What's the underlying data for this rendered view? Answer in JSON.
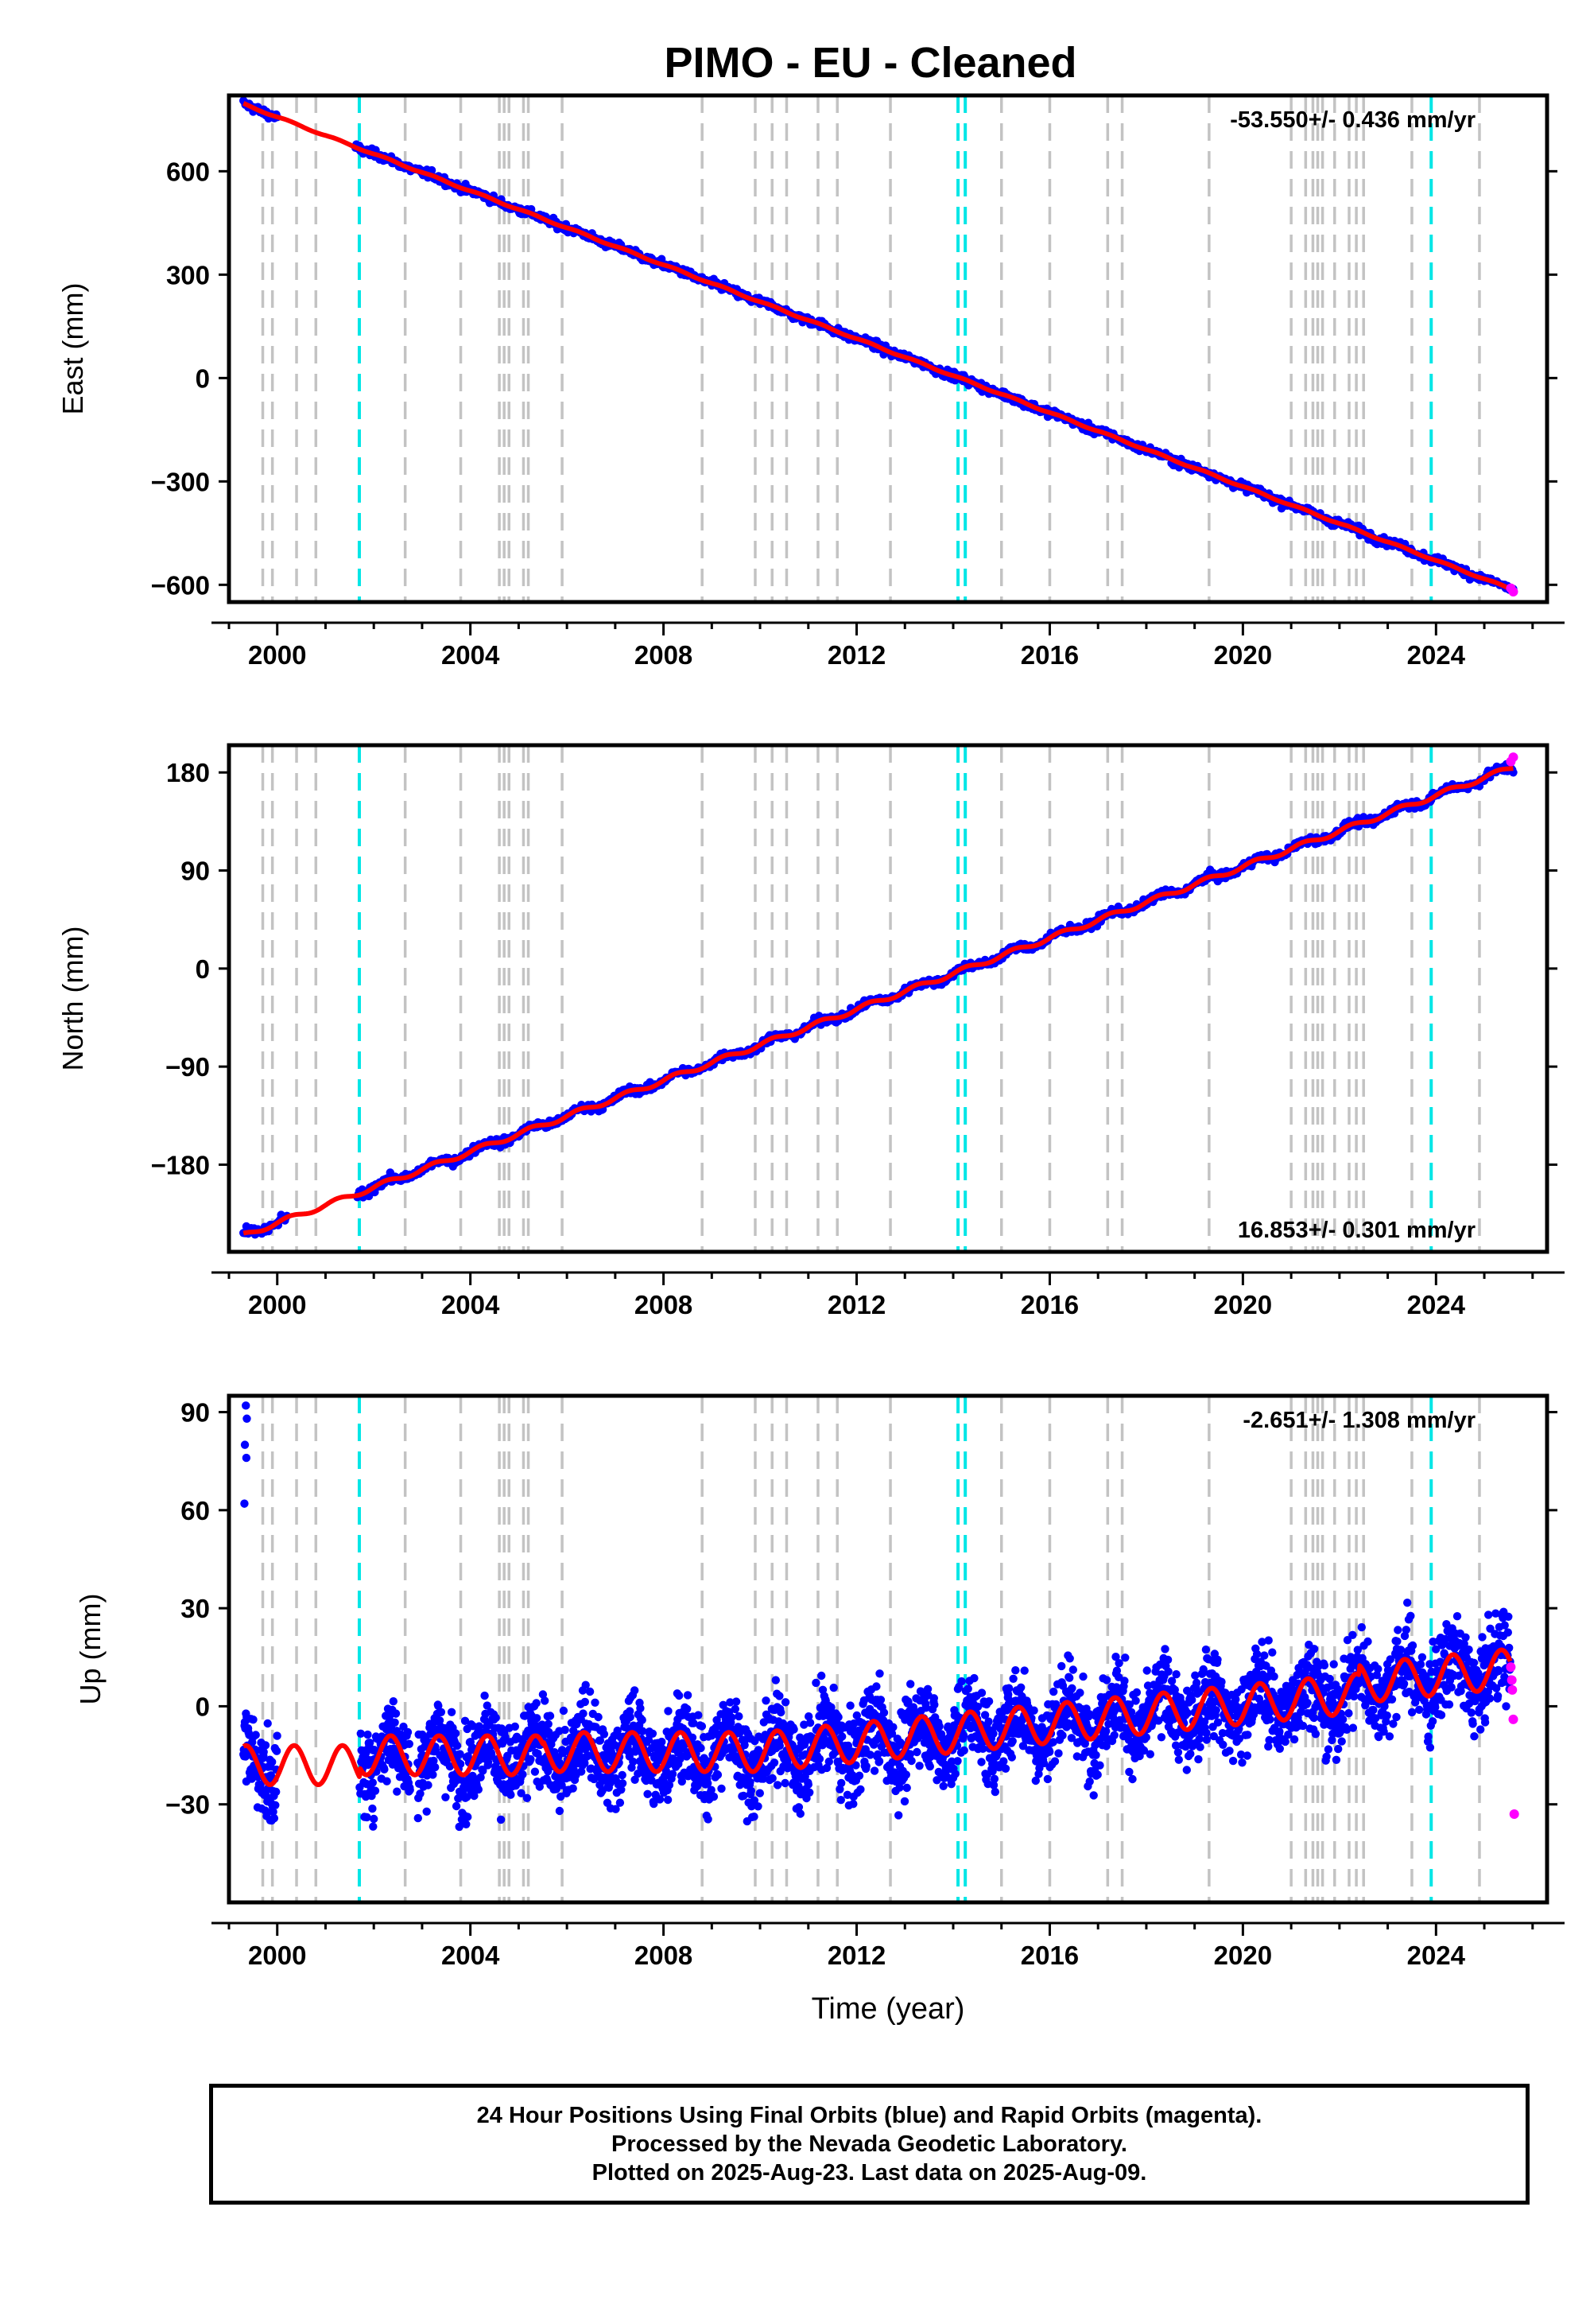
{
  "title": "PIMO  - EU - Cleaned",
  "chart_data": [
    {
      "type": "scatter",
      "ylabel": "East (mm)",
      "xlim": [
        1999.0,
        2026.3
      ],
      "ylim": [
        -650,
        820
      ],
      "yticks": [
        600,
        300,
        0,
        -300,
        -600
      ],
      "ytick_labels": [
        "600",
        "300",
        "0",
        "−300",
        "−600"
      ],
      "xticks": [
        2000,
        2004,
        2008,
        2012,
        2016,
        2020,
        2024
      ],
      "rate_label": "-53.550+/- 0.436 mm/yr",
      "rate_position": "top-right",
      "trend": {
        "start": [
          1999.3,
          795
        ],
        "end": [
          2025.6,
          -615
        ]
      },
      "rapid_points": [
        [
          2025.55,
          -610
        ],
        [
          2025.6,
          -620
        ]
      ]
    },
    {
      "type": "scatter",
      "ylabel": "North (mm)",
      "xlim": [
        1999.0,
        2026.3
      ],
      "ylim": [
        -260,
        205
      ],
      "yticks": [
        180,
        90,
        0,
        -90,
        -180
      ],
      "ytick_labels": [
        "180",
        "90",
        "0",
        "−90",
        "−180"
      ],
      "xticks": [
        2000,
        2004,
        2008,
        2012,
        2016,
        2020,
        2024
      ],
      "rate_label": "16.853+/- 0.301 mm/yr",
      "rate_position": "bottom-right",
      "trend": {
        "start": [
          1999.3,
          -245
        ],
        "end": [
          2025.6,
          185
        ]
      },
      "rapid_points": [
        [
          2025.55,
          190
        ],
        [
          2025.6,
          194
        ]
      ]
    },
    {
      "type": "scatter",
      "ylabel": "Up (mm)",
      "xlabel": "Time (year)",
      "xlim": [
        1999.0,
        2026.3
      ],
      "ylim": [
        -60,
        95
      ],
      "yticks": [
        90,
        60,
        30,
        0,
        -30
      ],
      "ytick_labels": [
        "90",
        "60",
        "30",
        "0",
        "−30"
      ],
      "xticks": [
        2000,
        2004,
        2008,
        2012,
        2016,
        2020,
        2024
      ],
      "rate_label": "-2.651+/- 1.308 mm/yr",
      "rate_position": "top-right",
      "rapid_points": [
        [
          2025.55,
          12
        ],
        [
          2025.58,
          5
        ],
        [
          2025.6,
          -4
        ],
        [
          2025.62,
          -33
        ],
        [
          2025.57,
          8
        ]
      ]
    }
  ],
  "steps_gray": [
    1999.7,
    1999.9,
    2000.4,
    2000.8,
    2002.65,
    2003.8,
    2004.6,
    2004.7,
    2004.8,
    2005.1,
    2005.2,
    2005.9,
    2008.8,
    2009.9,
    2010.25,
    2010.55,
    2011.2,
    2011.6,
    2012.7,
    2015.0,
    2016.0,
    2017.2,
    2017.5,
    2019.3,
    2021.0,
    2021.3,
    2021.45,
    2021.55,
    2021.65,
    2021.9,
    2022.2,
    2022.35,
    2022.5,
    2023.5,
    2024.9
  ],
  "steps_cyan": [
    2001.7,
    2014.1,
    2014.25,
    2023.9
  ],
  "colors": {
    "final": "#0000ff",
    "rapid": "#ff00ff",
    "model": "#ff0000",
    "step_gray": "#c3c3c3",
    "step_cyan": "#00e6e6"
  },
  "notes": [
    "24 Hour Positions Using Final Orbits (blue) and Rapid Orbits (magenta).",
    "Processed by the Nevada Geodetic Laboratory.",
    "Plotted on 2025-Aug-23. Last data on 2025-Aug-09."
  ]
}
